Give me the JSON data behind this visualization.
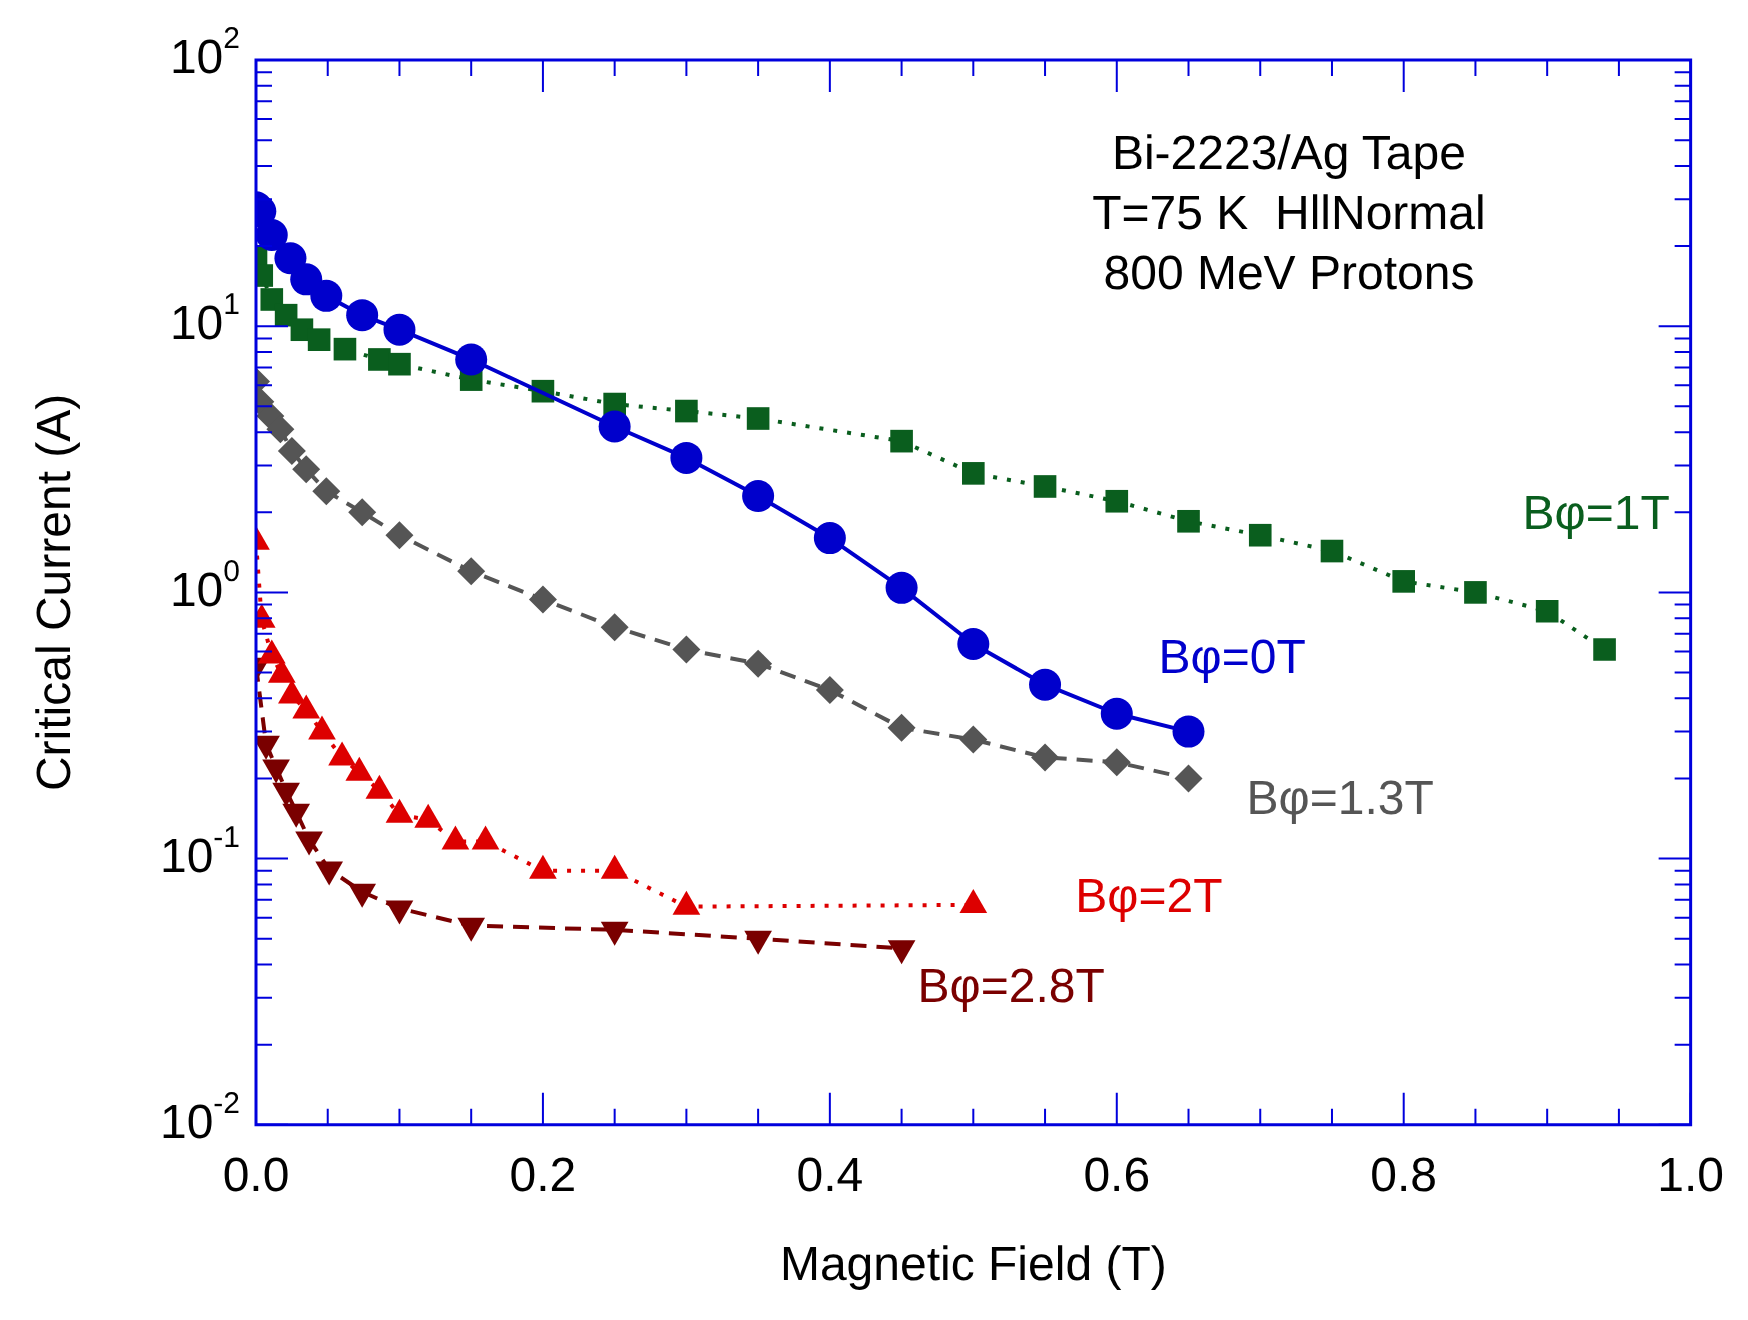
{
  "chart_data": {
    "type": "line",
    "xlabel": "Magnetic Field (T)",
    "ylabel": "Critical Current (A)",
    "annotations": [
      "Bi-2223/Ag Tape",
      "T=75 K  HllNormal",
      "800 MeV Protons"
    ],
    "xlim": [
      0,
      1
    ],
    "xticks": [
      {
        "value": 0,
        "label": "0.0"
      },
      {
        "value": 0.2,
        "label": "0.2"
      },
      {
        "value": 0.4,
        "label": "0.4"
      },
      {
        "value": 0.6,
        "label": "0.6"
      },
      {
        "value": 0.8,
        "label": "0.8"
      },
      {
        "value": 1,
        "label": "1.0"
      }
    ],
    "ylim": [
      0.01,
      100
    ],
    "log": "y",
    "yticks": [
      {
        "value": 0.01,
        "label": "10$^{-2}$"
      },
      {
        "value": 0.1,
        "label": "10$^{-1}$"
      },
      {
        "value": 1,
        "label": "10$^{0}$"
      },
      {
        "value": 10,
        "label": "10$^{1}$"
      },
      {
        "value": 100,
        "label": "10$^{2}$"
      }
    ],
    "grid": false,
    "legend": false,
    "series": [
      {
        "name": "Bφ=0T",
        "color": "#0000cc",
        "marker": "circle",
        "line_style": "solid",
        "x": [
          0,
          0.003,
          0.011,
          0.024,
          0.035,
          0.049,
          0.074,
          0.1,
          0.15,
          0.25,
          0.3,
          0.35,
          0.4,
          0.45,
          0.5,
          0.55,
          0.6,
          0.65
        ],
        "values": [
          28,
          27,
          22,
          18,
          15,
          13,
          11,
          9.7,
          7.5,
          4.2,
          3.2,
          2.3,
          1.6,
          1.04,
          0.64,
          0.45,
          0.35,
          0.3
        ]
      },
      {
        "name": "Bφ=1T",
        "color": "#0a5e1e",
        "marker": "square",
        "line_style": "dotted",
        "x": [
          0,
          0.004,
          0.011,
          0.021,
          0.032,
          0.044,
          0.062,
          0.086,
          0.1,
          0.15,
          0.2,
          0.25,
          0.3,
          0.35,
          0.45,
          0.5,
          0.55,
          0.6,
          0.65,
          0.7,
          0.75,
          0.8,
          0.85,
          0.9,
          0.94
        ],
        "values": [
          18,
          15.5,
          12.6,
          11,
          9.7,
          8.9,
          8.2,
          7.5,
          7.2,
          6.3,
          5.7,
          5.1,
          4.8,
          4.5,
          3.7,
          2.8,
          2.5,
          2.2,
          1.85,
          1.64,
          1.43,
          1.1,
          1.0,
          0.85,
          0.61
        ]
      },
      {
        "name": "Bφ=1.3T",
        "color": "#555555",
        "marker": "diamond",
        "line_style": "dashed",
        "x": [
          0,
          0.003,
          0.01,
          0.017,
          0.025,
          0.035,
          0.049,
          0.074,
          0.1,
          0.15,
          0.2,
          0.25,
          0.3,
          0.35,
          0.4,
          0.45,
          0.5,
          0.55,
          0.6,
          0.65
        ],
        "values": [
          6.2,
          5.2,
          4.6,
          4.1,
          3.4,
          2.9,
          2.4,
          2.0,
          1.64,
          1.2,
          0.94,
          0.74,
          0.61,
          0.54,
          0.43,
          0.31,
          0.28,
          0.24,
          0.23,
          0.2
        ]
      },
      {
        "name": "Bφ=2T",
        "color": "#dd0000",
        "marker": "triangle",
        "line_style": "dotted",
        "x": [
          0,
          0.004,
          0.011,
          0.018,
          0.025,
          0.035,
          0.046,
          0.06,
          0.072,
          0.086,
          0.1,
          0.12,
          0.139,
          0.16,
          0.2,
          0.25,
          0.3,
          0.5
        ],
        "values": [
          1.55,
          0.79,
          0.58,
          0.49,
          0.41,
          0.36,
          0.3,
          0.24,
          0.21,
          0.18,
          0.146,
          0.14,
          0.116,
          0.116,
          0.09,
          0.09,
          0.066,
          0.067
        ]
      },
      {
        "name": "Bφ=2.8T",
        "color": "#7a0000",
        "marker": "triangle-down",
        "line_style": "dashed",
        "x": [
          0,
          0.007,
          0.014,
          0.021,
          0.028,
          0.037,
          0.051,
          0.074,
          0.1,
          0.15,
          0.25,
          0.35,
          0.45
        ],
        "values": [
          0.53,
          0.27,
          0.22,
          0.18,
          0.15,
          0.118,
          0.091,
          0.075,
          0.065,
          0.056,
          0.054,
          0.05,
          0.046
        ]
      }
    ]
  }
}
